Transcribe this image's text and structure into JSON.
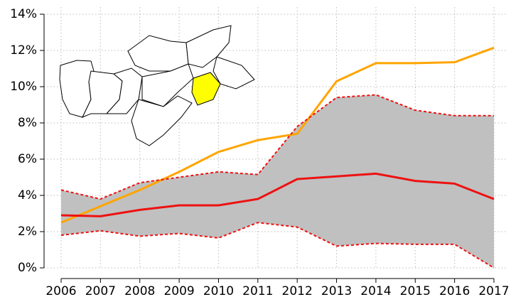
{
  "chart_data": {
    "type": "line",
    "x": [
      2006,
      2007,
      2008,
      2009,
      2010,
      2011,
      2012,
      2013,
      2014,
      2015,
      2016,
      2017
    ],
    "xlim": [
      2006,
      2017
    ],
    "xticks": [
      2006,
      2007,
      2008,
      2009,
      2010,
      2011,
      2012,
      2013,
      2014,
      2015,
      2016,
      2017
    ],
    "ylim": [
      0,
      14
    ],
    "yticks": [
      {
        "value": 0,
        "label": "0%"
      },
      {
        "value": 2,
        "label": "2%"
      },
      {
        "value": 4,
        "label": "4%"
      },
      {
        "value": 6,
        "label": "6%"
      },
      {
        "value": 8,
        "label": "8%"
      },
      {
        "value": 10,
        "label": "10%"
      },
      {
        "value": 12,
        "label": "12%"
      },
      {
        "value": 14,
        "label": "14%"
      }
    ],
    "grid": true,
    "band_color": "#c0c0c0",
    "series": [
      {
        "color": "#ffa500",
        "style": "solid",
        "values": [
          2.5,
          3.4,
          4.3,
          5.3,
          6.4,
          7.05,
          7.4,
          10.3,
          11.3,
          11.3,
          11.35,
          12.15
        ]
      },
      {
        "color": "#ee1111",
        "style": "solid",
        "values": [
          2.9,
          2.85,
          3.2,
          3.45,
          3.45,
          3.8,
          4.9,
          5.05,
          5.2,
          4.8,
          4.65,
          3.8
        ]
      },
      {
        "color": "#ee1111",
        "style": "dashed",
        "values": [
          4.3,
          3.8,
          4.7,
          5.0,
          5.3,
          5.15,
          7.8,
          9.4,
          9.55,
          8.7,
          8.4,
          8.4
        ]
      },
      {
        "color": "#ee1111",
        "style": "dashed",
        "values": [
          1.8,
          2.05,
          1.75,
          1.9,
          1.65,
          2.5,
          2.25,
          1.2,
          1.35,
          1.3,
          1.3,
          0.0
        ]
      }
    ]
  }
}
